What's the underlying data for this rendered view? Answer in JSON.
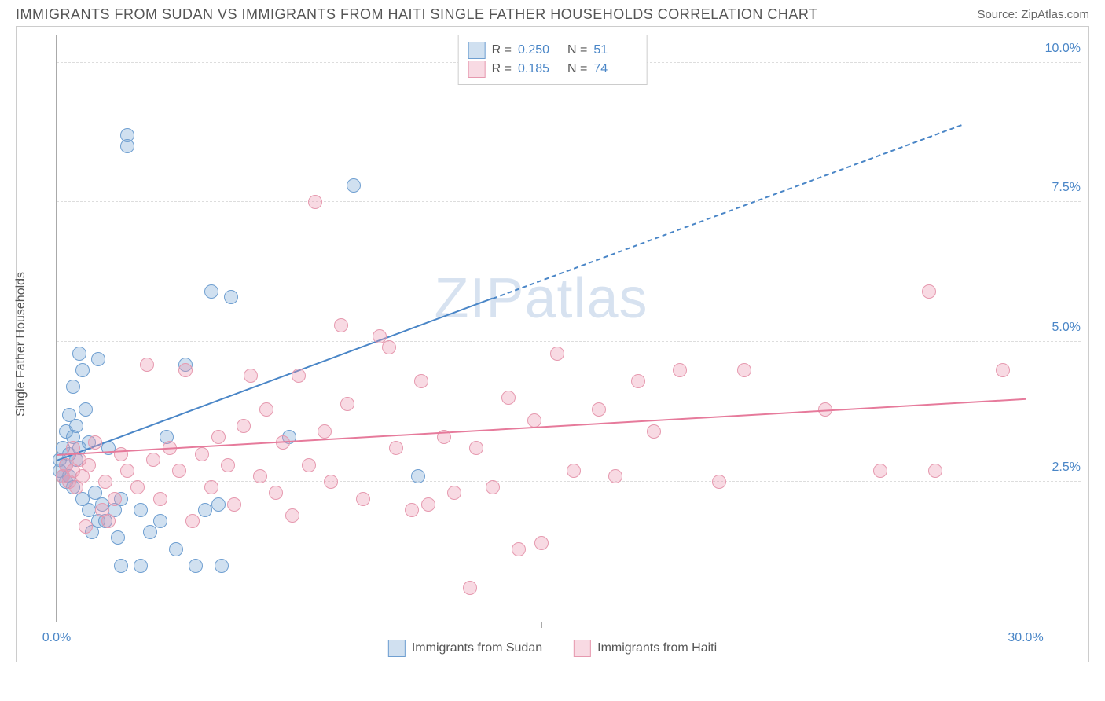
{
  "title": "IMMIGRANTS FROM SUDAN VS IMMIGRANTS FROM HAITI SINGLE FATHER HOUSEHOLDS CORRELATION CHART",
  "source_label": "Source: ZipAtlas.com",
  "ylabel": "Single Father Households",
  "watermark": "ZIPatlas",
  "chart": {
    "type": "scatter",
    "background_color": "#ffffff",
    "grid_color": "#dddddd",
    "border_color": "#cccccc",
    "axis_color": "#aaaaaa",
    "tick_label_color": "#4a86c7",
    "xlim": [
      0,
      30
    ],
    "ylim": [
      0,
      10.5
    ],
    "xticks": [
      0,
      7.5,
      15,
      22.5,
      30
    ],
    "xtick_labels": [
      "0.0%",
      "",
      "",
      "",
      "30.0%"
    ],
    "yticks": [
      2.5,
      5.0,
      7.5,
      10.0
    ],
    "ytick_labels": [
      "2.5%",
      "5.0%",
      "7.5%",
      "10.0%"
    ],
    "marker_radius": 9,
    "marker_stroke": 1.5,
    "marker_fill_opacity": 0.35,
    "series": [
      {
        "name": "Immigrants from Sudan",
        "color": "#4a86c7",
        "fill": "rgba(120,165,213,0.35)",
        "stroke": "#6f9fd1",
        "R": "0.250",
        "N": "51",
        "trend": {
          "x1": 0,
          "y1": 2.9,
          "x2": 13.5,
          "y2": 5.8,
          "x2_dash": 28,
          "y2_dash": 8.9,
          "width": 2.5
        },
        "points": [
          [
            0.1,
            2.7
          ],
          [
            0.1,
            2.9
          ],
          [
            0.2,
            2.6
          ],
          [
            0.2,
            3.1
          ],
          [
            0.3,
            2.8
          ],
          [
            0.3,
            3.4
          ],
          [
            0.3,
            2.5
          ],
          [
            0.4,
            3.7
          ],
          [
            0.4,
            3.0
          ],
          [
            0.4,
            2.6
          ],
          [
            0.5,
            3.3
          ],
          [
            0.5,
            4.2
          ],
          [
            0.5,
            2.4
          ],
          [
            0.6,
            3.5
          ],
          [
            0.6,
            2.9
          ],
          [
            0.7,
            4.8
          ],
          [
            0.7,
            3.1
          ],
          [
            0.8,
            4.5
          ],
          [
            0.8,
            2.2
          ],
          [
            0.9,
            3.8
          ],
          [
            1.0,
            2.0
          ],
          [
            1.0,
            3.2
          ],
          [
            1.1,
            1.6
          ],
          [
            1.2,
            2.3
          ],
          [
            1.3,
            4.7
          ],
          [
            1.3,
            1.8
          ],
          [
            1.4,
            2.1
          ],
          [
            1.5,
            1.8
          ],
          [
            1.6,
            3.1
          ],
          [
            1.8,
            2.0
          ],
          [
            1.9,
            1.5
          ],
          [
            2.0,
            1.0
          ],
          [
            2.0,
            2.2
          ],
          [
            2.2,
            8.7
          ],
          [
            2.2,
            8.5
          ],
          [
            2.6,
            1.0
          ],
          [
            2.6,
            2.0
          ],
          [
            2.9,
            1.6
          ],
          [
            3.2,
            1.8
          ],
          [
            3.4,
            3.3
          ],
          [
            3.7,
            1.3
          ],
          [
            4.0,
            4.6
          ],
          [
            4.3,
            1.0
          ],
          [
            4.6,
            2.0
          ],
          [
            4.8,
            5.9
          ],
          [
            5.0,
            2.1
          ],
          [
            5.1,
            1.0
          ],
          [
            5.4,
            5.8
          ],
          [
            7.2,
            3.3
          ],
          [
            9.2,
            7.8
          ],
          [
            11.2,
            2.6
          ]
        ]
      },
      {
        "name": "Immigrants from Haiti",
        "color": "#e67a9b",
        "fill": "rgba(235,150,175,0.35)",
        "stroke": "#e699af",
        "R": "0.185",
        "N": "74",
        "trend": {
          "x1": 0,
          "y1": 3.0,
          "x2": 30,
          "y2": 4.0,
          "width": 2.5
        },
        "points": [
          [
            0.2,
            2.6
          ],
          [
            0.3,
            2.8
          ],
          [
            0.4,
            2.5
          ],
          [
            0.5,
            2.7
          ],
          [
            0.5,
            3.1
          ],
          [
            0.6,
            2.4
          ],
          [
            0.7,
            2.9
          ],
          [
            0.8,
            2.6
          ],
          [
            0.9,
            1.7
          ],
          [
            1.0,
            2.8
          ],
          [
            1.2,
            3.2
          ],
          [
            1.4,
            2.0
          ],
          [
            1.5,
            2.5
          ],
          [
            1.6,
            1.8
          ],
          [
            1.8,
            2.2
          ],
          [
            2.0,
            3.0
          ],
          [
            2.2,
            2.7
          ],
          [
            2.5,
            2.4
          ],
          [
            2.8,
            4.6
          ],
          [
            3.0,
            2.9
          ],
          [
            3.2,
            2.2
          ],
          [
            3.5,
            3.1
          ],
          [
            3.8,
            2.7
          ],
          [
            4.0,
            4.5
          ],
          [
            4.2,
            1.8
          ],
          [
            4.5,
            3.0
          ],
          [
            4.8,
            2.4
          ],
          [
            5.0,
            3.3
          ],
          [
            5.3,
            2.8
          ],
          [
            5.5,
            2.1
          ],
          [
            5.8,
            3.5
          ],
          [
            6.0,
            4.4
          ],
          [
            6.3,
            2.6
          ],
          [
            6.5,
            3.8
          ],
          [
            6.8,
            2.3
          ],
          [
            7.0,
            3.2
          ],
          [
            7.3,
            1.9
          ],
          [
            7.5,
            4.4
          ],
          [
            7.8,
            2.8
          ],
          [
            8.0,
            7.5
          ],
          [
            8.3,
            3.4
          ],
          [
            8.5,
            2.5
          ],
          [
            8.8,
            5.3
          ],
          [
            9.0,
            3.9
          ],
          [
            9.5,
            2.2
          ],
          [
            10.0,
            5.1
          ],
          [
            10.3,
            4.9
          ],
          [
            10.5,
            3.1
          ],
          [
            11.0,
            2.0
          ],
          [
            11.3,
            4.3
          ],
          [
            11.5,
            2.1
          ],
          [
            12.0,
            3.3
          ],
          [
            12.3,
            2.3
          ],
          [
            12.8,
            0.6
          ],
          [
            13.0,
            3.1
          ],
          [
            13.5,
            2.4
          ],
          [
            14.0,
            4.0
          ],
          [
            14.3,
            1.3
          ],
          [
            14.8,
            3.6
          ],
          [
            15.0,
            1.4
          ],
          [
            15.5,
            4.8
          ],
          [
            16.0,
            2.7
          ],
          [
            16.8,
            3.8
          ],
          [
            17.3,
            2.6
          ],
          [
            18.0,
            4.3
          ],
          [
            18.5,
            3.4
          ],
          [
            19.3,
            4.5
          ],
          [
            20.5,
            2.5
          ],
          [
            21.3,
            4.5
          ],
          [
            23.8,
            3.8
          ],
          [
            25.5,
            2.7
          ],
          [
            27.0,
            5.9
          ],
          [
            27.2,
            2.7
          ],
          [
            29.3,
            4.5
          ]
        ]
      }
    ]
  }
}
